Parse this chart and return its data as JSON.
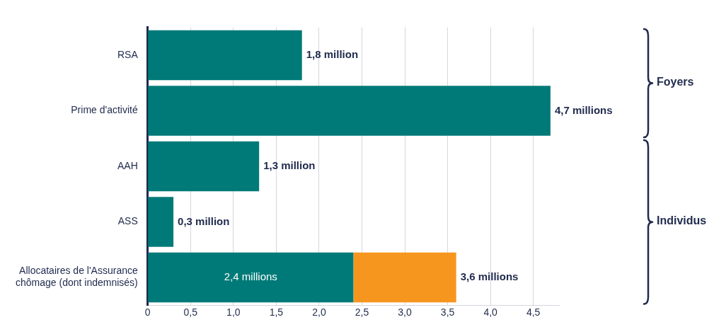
{
  "chart_data": {
    "type": "bar",
    "orientation": "horizontal",
    "stacked": true,
    "categories": [
      "RSA",
      "Prime d'activité",
      "AAH",
      "ASS",
      "Allocataires de l'Assurance chômage (dont indemnisés)"
    ],
    "series": [
      {
        "color": "#007a78",
        "values": [
          1.8,
          4.7,
          1.3,
          0.3,
          2.4
        ],
        "value_labels": [
          "1,8 million",
          "4,7 millions",
          "1,3 million",
          "0,3 million",
          "2,4 millions"
        ]
      },
      {
        "color": "#f7961f",
        "values": [
          null,
          null,
          null,
          null,
          1.2
        ]
      }
    ],
    "totals": [
      null,
      null,
      null,
      null,
      "3,6 millions"
    ],
    "xlim": [
      0,
      4.8
    ],
    "xticks": [
      {
        "value": 0,
        "label": "0"
      },
      {
        "value": 0.5,
        "label": "0,5"
      },
      {
        "value": 1,
        "label": "1,0"
      },
      {
        "value": 1.5,
        "label": "1,5"
      },
      {
        "value": 2,
        "label": "2,0"
      },
      {
        "value": 2.5,
        "label": "2,5"
      },
      {
        "value": 3,
        "label": "3,0"
      },
      {
        "value": 3.5,
        "label": "3,5"
      },
      {
        "value": 4,
        "label": "4,0"
      },
      {
        "value": 4.5,
        "label": "4,5"
      }
    ],
    "grid": "x",
    "legend": false,
    "annotations": [
      "Foyers",
      "Individus"
    ]
  }
}
